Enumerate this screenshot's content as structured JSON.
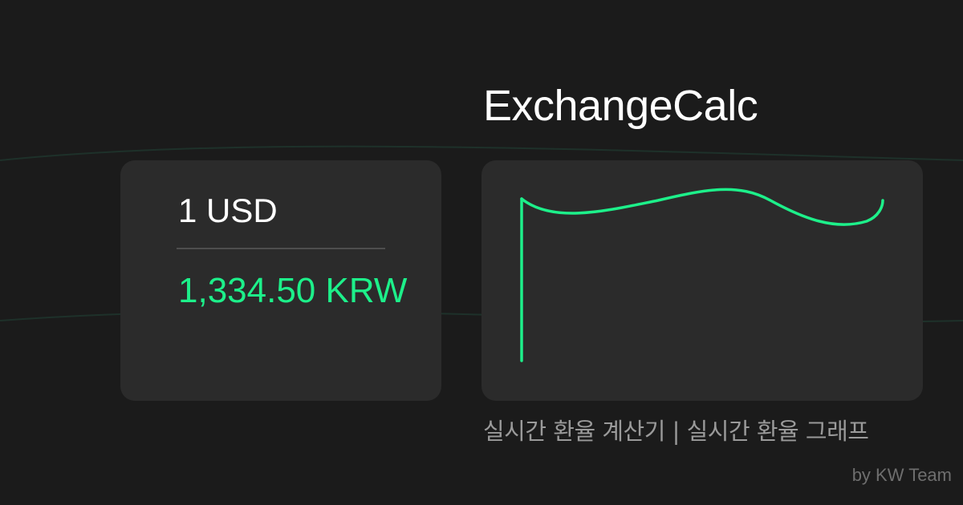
{
  "app": {
    "title": "ExchangeCalc"
  },
  "converter": {
    "from_amount": "1 USD",
    "to_amount": "1,334.50 KRW"
  },
  "footer": {
    "subtitle": "실시간 환율 계산기 | 실시간 환율 그래프",
    "credit": "by KW Team"
  },
  "colors": {
    "background": "#1b1b1b",
    "card": "#2b2b2b",
    "accent": "#1df08a",
    "title": "#ffffff",
    "muted": "#9a9a9a"
  }
}
